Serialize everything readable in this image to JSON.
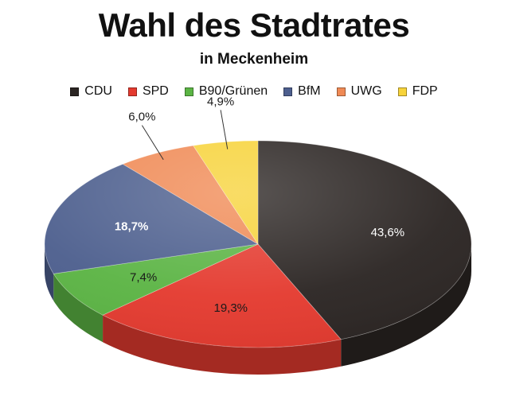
{
  "chart_data": {
    "type": "pie",
    "title": "Wahl des Stadtrates",
    "subtitle": "in Meckenheim",
    "legend_position": "top",
    "slices": [
      {
        "label": "CDU",
        "value": 43.6,
        "display": "43,6%",
        "color": "#2b2523",
        "label_color": "#ffffff"
      },
      {
        "label": "SPD",
        "value": 19.3,
        "display": "19,3%",
        "color": "#e43a2f",
        "label_color": "#1a1a1a"
      },
      {
        "label": "B90/Grünen",
        "value": 7.4,
        "display": "7,4%",
        "color": "#5bb444",
        "label_color": "#1a1a1a"
      },
      {
        "label": "BfM",
        "value": 18.7,
        "display": "18,7%",
        "color": "#4d5f8e",
        "label_color": "#ffffff"
      },
      {
        "label": "UWG",
        "value": 6.0,
        "display": "6,0%",
        "color": "#f08a55",
        "label_color": "#1a1a1a"
      },
      {
        "label": "FDP",
        "value": 4.9,
        "display": "4,9%",
        "color": "#f7d33a",
        "label_color": "#1a1a1a"
      }
    ]
  }
}
